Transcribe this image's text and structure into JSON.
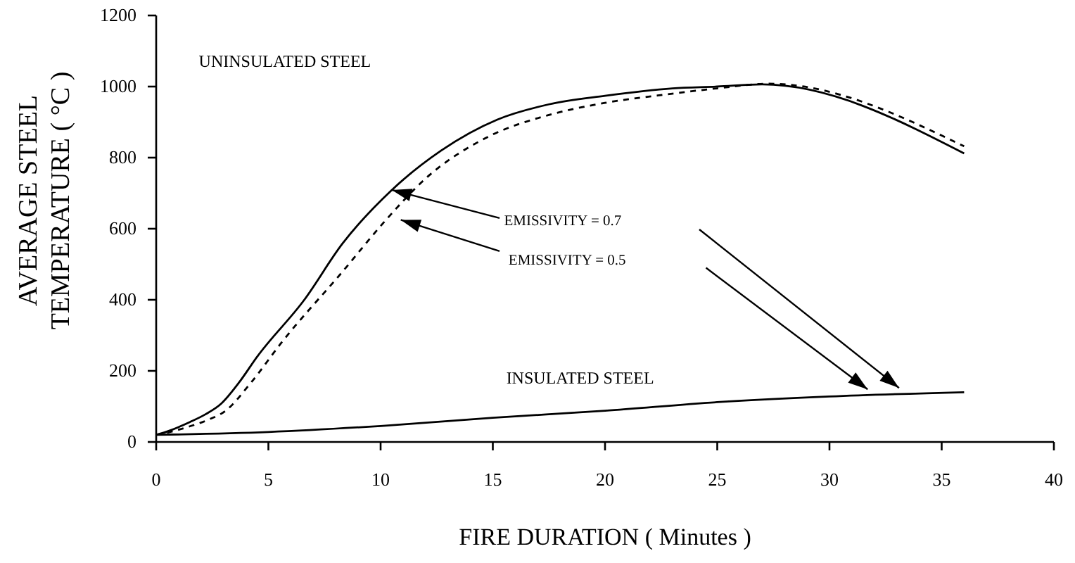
{
  "chart_data": {
    "type": "line",
    "xlabel": "FIRE DURATION ( Minutes )",
    "ylabel": "AVERAGE STEEL\nTEMPERATURE ( °C )",
    "xlim": [
      0,
      40
    ],
    "ylim": [
      0,
      1200
    ],
    "xticks": [
      0,
      5,
      10,
      15,
      20,
      25,
      30,
      35,
      40
    ],
    "yticks": [
      0,
      200,
      400,
      600,
      800,
      1000,
      1200
    ],
    "marker": "none",
    "series": [
      {
        "color": "#000000",
        "line_style": "solid",
        "x": [
          0,
          0.6,
          1.5,
          2.2,
          2.9,
          3.7,
          4.5,
          6.6,
          8.3,
          10.5,
          12.7,
          15.2,
          17.5,
          20,
          23,
          25,
          27,
          36
        ],
        "values": [
          20,
          32,
          56,
          78,
          108,
          168,
          240,
          400,
          558,
          709,
          820,
          907,
          950,
          974,
          995,
          1000,
          1006,
          812
        ]
      },
      {
        "color": "#000000",
        "line_style": "dashed",
        "x": [
          0,
          0.6,
          1.5,
          2.3,
          3.1,
          4.2,
          5.6,
          8.3,
          10.2,
          12,
          14.8,
          17.5,
          20,
          23,
          25,
          27.3,
          36
        ],
        "values": [
          20,
          28,
          44,
          62,
          88,
          165,
          281,
          479,
          622,
          741,
          859,
          920,
          954,
          980,
          995,
          1008,
          832
        ]
      },
      {
        "color": "#000000",
        "line_style": "solid",
        "x": [
          0,
          5,
          10,
          15,
          20,
          25,
          30,
          36
        ],
        "values": [
          20,
          28,
          45,
          68,
          88,
          112,
          128,
          140
        ]
      }
    ],
    "annotations": [
      "UNINSULATED STEEL",
      {
        "text": "EMISSIVITY = 0.7",
        "x": 10.5,
        "y": 709
      },
      "EMISSIVITY = 0.5",
      "INSULATED STEEL"
    ]
  }
}
